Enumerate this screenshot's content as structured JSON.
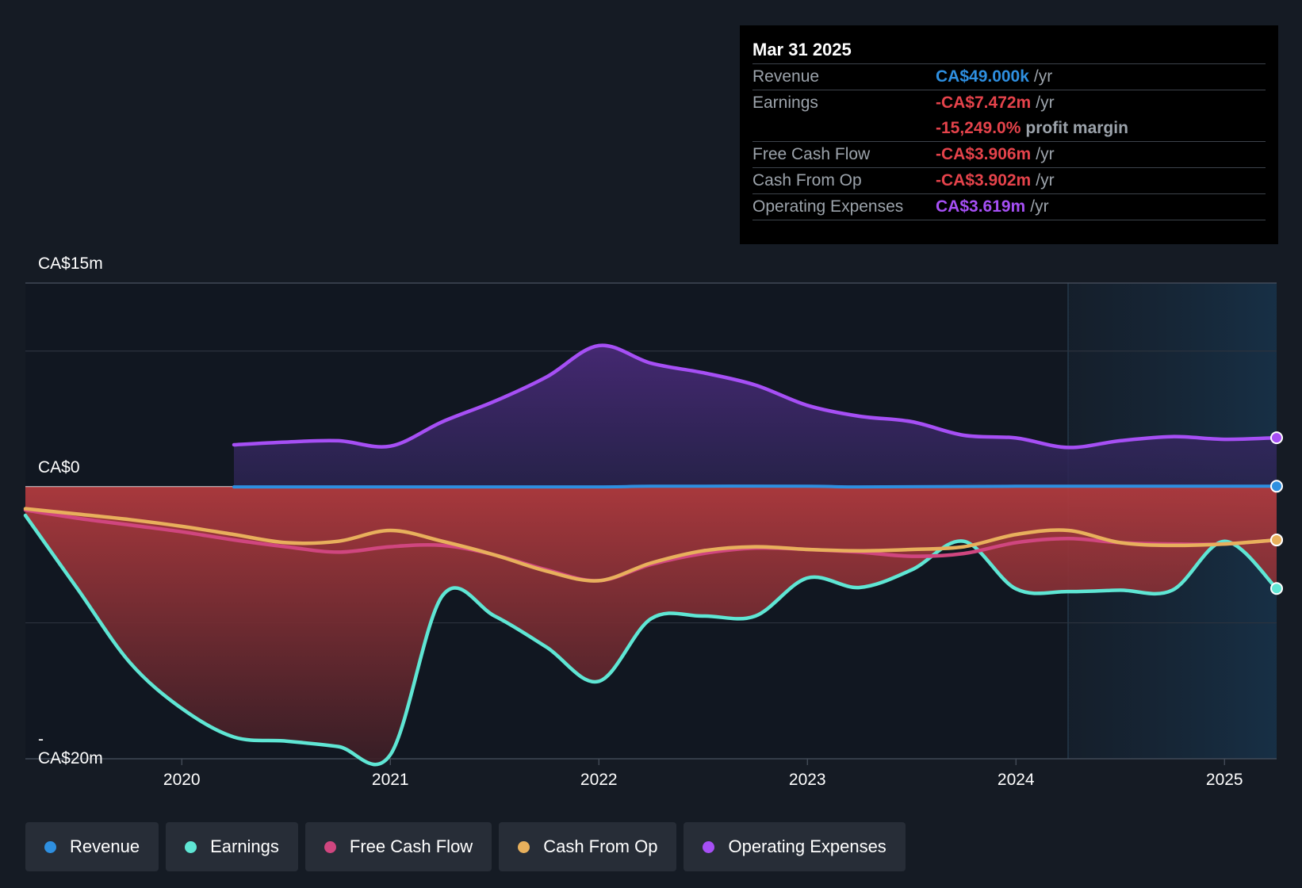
{
  "tooltip": {
    "date": "Mar 31 2025",
    "rows": [
      {
        "label": "Revenue",
        "value": "CA$49.000k",
        "unit": "/yr",
        "color": "#2e8fe0"
      },
      {
        "label": "Earnings",
        "value": "-CA$7.472m",
        "unit": "/yr",
        "color": "#e5434b"
      },
      {
        "label": "",
        "value": "-15,249.0%",
        "unit": "profit margin",
        "color": "#e5434b"
      },
      {
        "label": "Free Cash Flow",
        "value": "-CA$3.906m",
        "unit": "/yr",
        "color": "#e5434b"
      },
      {
        "label": "Cash From Op",
        "value": "-CA$3.902m",
        "unit": "/yr",
        "color": "#e5434b"
      },
      {
        "label": "Operating Expenses",
        "value": "CA$3.619m",
        "unit": "/yr",
        "color": "#a64ff5"
      }
    ]
  },
  "legend": [
    {
      "label": "Revenue",
      "color": "#2e8fe0"
    },
    {
      "label": "Earnings",
      "color": "#5fe6d4"
    },
    {
      "label": "Free Cash Flow",
      "color": "#d0467f"
    },
    {
      "label": "Cash From Op",
      "color": "#e8b05c"
    },
    {
      "label": "Operating Expenses",
      "color": "#a64ff5"
    }
  ],
  "chart_data": {
    "type": "line",
    "title": "",
    "xlabel": "",
    "ylabel": "",
    "ylim": [
      -20,
      15
    ],
    "xlim": [
      2019.25,
      2025.25
    ],
    "y_tick_labels": [
      "CA$15m",
      "CA$0",
      "-CA$20m"
    ],
    "y_tick_values": [
      15,
      0,
      -20
    ],
    "gridlines": [
      15,
      10,
      0,
      -10,
      -20
    ],
    "x_tick_labels": [
      "2020",
      "2021",
      "2022",
      "2023",
      "2024",
      "2025"
    ],
    "x_tick_values": [
      2020,
      2021,
      2022,
      2023,
      2024,
      2025
    ],
    "highlight_region": [
      2024.25,
      2025.25
    ],
    "series": [
      {
        "name": "Revenue",
        "color": "#2e8fe0",
        "x": [
          2020.25,
          2021.0,
          2022.0,
          2022.25,
          2023.0,
          2023.25,
          2024.0,
          2025.0,
          2025.25
        ],
        "y": [
          0,
          0,
          0,
          0.05,
          0.05,
          0,
          0.05,
          0.05,
          0.049
        ]
      },
      {
        "name": "Earnings",
        "color": "#5fe6d4",
        "x": [
          2019.25,
          2019.5,
          2019.75,
          2020.0,
          2020.25,
          2020.5,
          2020.75,
          2021.0,
          2021.25,
          2021.5,
          2021.75,
          2022.0,
          2022.25,
          2022.5,
          2022.75,
          2023.0,
          2023.25,
          2023.5,
          2023.75,
          2024.0,
          2024.25,
          2024.5,
          2024.75,
          2025.0,
          2025.25
        ],
        "y": [
          -2.1,
          -7.5,
          -12.9,
          -16.3,
          -18.4,
          -18.7,
          -19.1,
          -19.7,
          -8.0,
          -9.5,
          -11.8,
          -14.3,
          -9.7,
          -9.5,
          -9.5,
          -6.7,
          -7.4,
          -6.1,
          -4.0,
          -7.5,
          -7.7,
          -7.6,
          -7.6,
          -4.0,
          -7.47
        ]
      },
      {
        "name": "Free Cash Flow",
        "color": "#d0467f",
        "x": [
          2019.25,
          2019.5,
          2019.75,
          2020.0,
          2020.25,
          2020.5,
          2020.75,
          2021.0,
          2021.25,
          2021.5,
          2021.75,
          2022.0,
          2022.25,
          2022.5,
          2022.75,
          2023.0,
          2023.25,
          2023.5,
          2023.75,
          2024.0,
          2024.25,
          2024.5,
          2024.75,
          2025.0,
          2025.25
        ],
        "y": [
          -1.7,
          -2.3,
          -2.8,
          -3.3,
          -3.9,
          -4.4,
          -4.8,
          -4.4,
          -4.3,
          -5.0,
          -6.1,
          -6.9,
          -5.7,
          -4.9,
          -4.5,
          -4.6,
          -4.8,
          -5.1,
          -4.9,
          -4.1,
          -3.8,
          -4.1,
          -4.2,
          -4.2,
          -3.906
        ]
      },
      {
        "name": "Cash From Op",
        "color": "#e8b05c",
        "x": [
          2019.25,
          2019.5,
          2019.75,
          2020.0,
          2020.25,
          2020.5,
          2020.75,
          2021.0,
          2021.25,
          2021.5,
          2021.75,
          2022.0,
          2022.25,
          2022.5,
          2022.75,
          2023.0,
          2023.25,
          2023.5,
          2023.75,
          2024.0,
          2024.25,
          2024.5,
          2024.75,
          2025.0,
          2025.25
        ],
        "y": [
          -1.6,
          -2.0,
          -2.4,
          -2.9,
          -3.5,
          -4.1,
          -4.0,
          -3.2,
          -4.0,
          -5.0,
          -6.2,
          -6.9,
          -5.6,
          -4.7,
          -4.4,
          -4.6,
          -4.7,
          -4.6,
          -4.4,
          -3.5,
          -3.2,
          -4.1,
          -4.3,
          -4.2,
          -3.902
        ]
      },
      {
        "name": "Operating Expenses",
        "color": "#a64ff5",
        "x": [
          2020.25,
          2020.5,
          2020.75,
          2021.0,
          2021.25,
          2021.5,
          2021.75,
          2022.0,
          2022.25,
          2022.5,
          2022.75,
          2023.0,
          2023.25,
          2023.5,
          2023.75,
          2024.0,
          2024.25,
          2024.5,
          2024.75,
          2025.0,
          2025.25
        ],
        "y": [
          3.1,
          3.3,
          3.4,
          3.0,
          4.8,
          6.3,
          8.1,
          10.4,
          9.1,
          8.4,
          7.5,
          6.0,
          5.2,
          4.8,
          3.8,
          3.6,
          2.9,
          3.4,
          3.7,
          3.5,
          3.619
        ]
      }
    ]
  }
}
